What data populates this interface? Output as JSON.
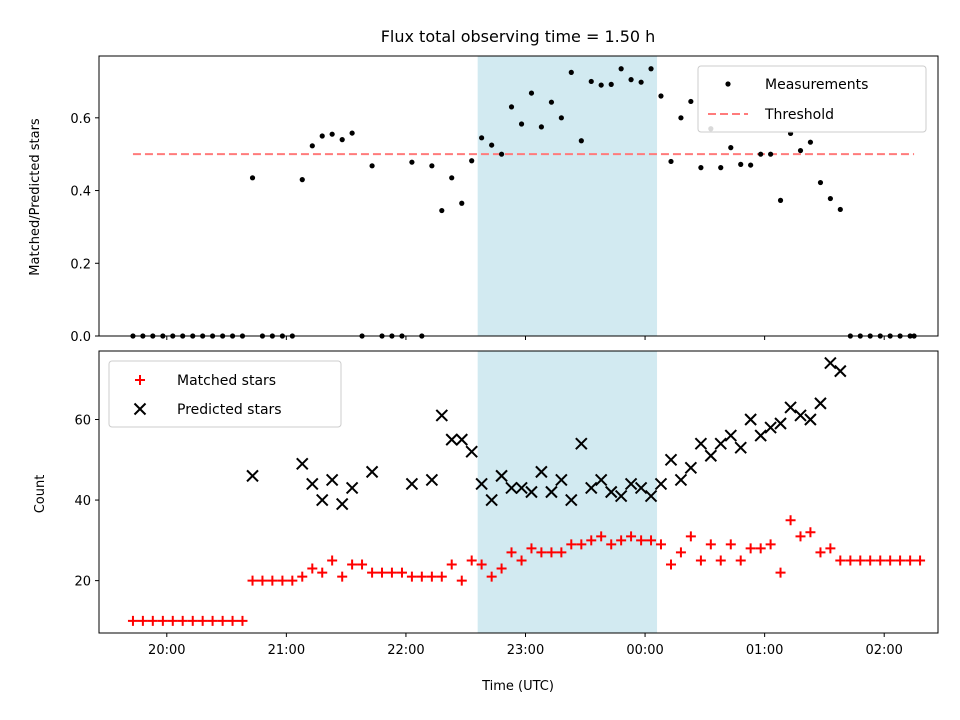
{
  "chart_data": [
    {
      "type": "scatter",
      "title": "Flux total observing time = 1.50 h",
      "xlabel": "",
      "ylabel": "Matched/Predicted stars",
      "xlim_hours": [
        19.433,
        26.45
      ],
      "ylim": [
        0,
        0.77
      ],
      "yticks": [
        "0.0",
        "0.2",
        "0.4",
        "0.6"
      ],
      "highlight_hours": [
        22.6,
        24.1
      ],
      "highlight_color": "#add8e6",
      "legend": {
        "position": "top-right",
        "entries": [
          "Measurements",
          "Threshold"
        ]
      },
      "threshold": {
        "name": "Threshold",
        "y": 0.5,
        "x_range_hours": [
          19.717,
          26.25
        ],
        "color": "#ff7b7b",
        "style": "dashed"
      },
      "series": [
        {
          "name": "Measurements",
          "marker": "dot",
          "color": "#000000",
          "points": [
            [
              19.717,
              0
            ],
            [
              19.8,
              0
            ],
            [
              19.883,
              0
            ],
            [
              19.967,
              0
            ],
            [
              20.05,
              0
            ],
            [
              20.133,
              0
            ],
            [
              20.217,
              0
            ],
            [
              20.3,
              0
            ],
            [
              20.383,
              0
            ],
            [
              20.467,
              0
            ],
            [
              20.55,
              0
            ],
            [
              20.633,
              0
            ],
            [
              20.717,
              0.435
            ],
            [
              20.8,
              0
            ],
            [
              20.883,
              0
            ],
            [
              20.967,
              0
            ],
            [
              21.05,
              0
            ],
            [
              21.133,
              0.43
            ],
            [
              21.217,
              0.523
            ],
            [
              21.3,
              0.55
            ],
            [
              21.383,
              0.555
            ],
            [
              21.467,
              0.54
            ],
            [
              21.55,
              0.558
            ],
            [
              21.633,
              0
            ],
            [
              21.717,
              0.468
            ],
            [
              21.8,
              0
            ],
            [
              21.883,
              0
            ],
            [
              21.967,
              0
            ],
            [
              22.05,
              0.478
            ],
            [
              22.133,
              0
            ],
            [
              22.217,
              0.468
            ],
            [
              22.3,
              0.345
            ],
            [
              22.383,
              0.435
            ],
            [
              22.467,
              0.365
            ],
            [
              22.55,
              0.482
            ],
            [
              22.633,
              0.545
            ],
            [
              22.717,
              0.525
            ],
            [
              22.8,
              0.5
            ],
            [
              22.883,
              0.63
            ],
            [
              22.967,
              0.583
            ],
            [
              23.05,
              0.668
            ],
            [
              23.133,
              0.575
            ],
            [
              23.217,
              0.643
            ],
            [
              23.3,
              0.6
            ],
            [
              23.383,
              0.725
            ],
            [
              23.467,
              0.537
            ],
            [
              23.55,
              0.7
            ],
            [
              23.633,
              0.69
            ],
            [
              23.717,
              0.692
            ],
            [
              23.8,
              0.735
            ],
            [
              23.883,
              0.705
            ],
            [
              23.967,
              0.698
            ],
            [
              24.05,
              0.735
            ],
            [
              24.133,
              0.66
            ],
            [
              24.217,
              0.48
            ],
            [
              24.3,
              0.6
            ],
            [
              24.383,
              0.645
            ],
            [
              24.467,
              0.463
            ],
            [
              24.55,
              0.57
            ],
            [
              24.633,
              0.463
            ],
            [
              24.717,
              0.518
            ],
            [
              24.8,
              0.472
            ],
            [
              24.883,
              0.47
            ],
            [
              24.967,
              0.5
            ],
            [
              25.05,
              0.5
            ],
            [
              25.133,
              0.373
            ],
            [
              25.217,
              0.557
            ],
            [
              25.3,
              0.51
            ],
            [
              25.383,
              0.533
            ],
            [
              25.467,
              0.422
            ],
            [
              25.55,
              0.378
            ],
            [
              25.633,
              0.348
            ],
            [
              25.717,
              0
            ],
            [
              25.8,
              0
            ],
            [
              25.883,
              0
            ],
            [
              25.967,
              0
            ],
            [
              26.05,
              0
            ],
            [
              26.133,
              0
            ],
            [
              26.217,
              0
            ],
            [
              26.25,
              0
            ]
          ]
        }
      ]
    },
    {
      "type": "scatter",
      "title": "",
      "xlabel": "Time (UTC)",
      "ylabel": "Count",
      "xlim_hours": [
        19.433,
        26.45
      ],
      "ylim": [
        7,
        77
      ],
      "yticks": [
        "20",
        "40",
        "60"
      ],
      "xticks": [
        "20:00",
        "21:00",
        "22:00",
        "23:00",
        "00:00",
        "01:00",
        "02:00"
      ],
      "highlight_hours": [
        22.6,
        24.1
      ],
      "highlight_color": "#add8e6",
      "legend": {
        "position": "top-left",
        "entries": [
          "Matched stars",
          "Predicted stars"
        ]
      },
      "series": [
        {
          "name": "Matched stars",
          "marker": "plus",
          "color": "#ff0000",
          "points": [
            [
              19.717,
              10
            ],
            [
              19.8,
              10
            ],
            [
              19.883,
              10
            ],
            [
              19.967,
              10
            ],
            [
              20.05,
              10
            ],
            [
              20.133,
              10
            ],
            [
              20.217,
              10
            ],
            [
              20.3,
              10
            ],
            [
              20.383,
              10
            ],
            [
              20.467,
              10
            ],
            [
              20.55,
              10
            ],
            [
              20.633,
              10
            ],
            [
              20.717,
              20
            ],
            [
              20.8,
              20
            ],
            [
              20.883,
              20
            ],
            [
              20.967,
              20
            ],
            [
              21.05,
              20
            ],
            [
              21.133,
              21
            ],
            [
              21.217,
              23
            ],
            [
              21.3,
              22
            ],
            [
              21.383,
              25
            ],
            [
              21.467,
              21
            ],
            [
              21.55,
              24
            ],
            [
              21.633,
              24
            ],
            [
              21.717,
              22
            ],
            [
              21.8,
              22
            ],
            [
              21.883,
              22
            ],
            [
              21.967,
              22
            ],
            [
              22.05,
              21
            ],
            [
              22.133,
              21
            ],
            [
              22.217,
              21
            ],
            [
              22.3,
              21
            ],
            [
              22.383,
              24
            ],
            [
              22.467,
              20
            ],
            [
              22.55,
              25
            ],
            [
              22.633,
              24
            ],
            [
              22.717,
              21
            ],
            [
              22.8,
              23
            ],
            [
              22.883,
              27
            ],
            [
              22.967,
              25
            ],
            [
              23.05,
              28
            ],
            [
              23.133,
              27
            ],
            [
              23.217,
              27
            ],
            [
              23.3,
              27
            ],
            [
              23.383,
              29
            ],
            [
              23.467,
              29
            ],
            [
              23.55,
              30
            ],
            [
              23.633,
              31
            ],
            [
              23.717,
              29
            ],
            [
              23.8,
              30
            ],
            [
              23.883,
              31
            ],
            [
              23.967,
              30
            ],
            [
              24.05,
              30
            ],
            [
              24.133,
              29
            ],
            [
              24.217,
              24
            ],
            [
              24.3,
              27
            ],
            [
              24.383,
              31
            ],
            [
              24.467,
              25
            ],
            [
              24.55,
              29
            ],
            [
              24.633,
              25
            ],
            [
              24.717,
              29
            ],
            [
              24.8,
              25
            ],
            [
              24.883,
              28
            ],
            [
              24.967,
              28
            ],
            [
              25.05,
              29
            ],
            [
              25.133,
              22
            ],
            [
              25.217,
              35
            ],
            [
              25.3,
              31
            ],
            [
              25.383,
              32
            ],
            [
              25.467,
              27
            ],
            [
              25.55,
              28
            ],
            [
              25.633,
              25
            ],
            [
              25.717,
              25
            ],
            [
              25.8,
              25
            ],
            [
              25.883,
              25
            ],
            [
              25.967,
              25
            ],
            [
              26.05,
              25
            ],
            [
              26.133,
              25
            ],
            [
              26.217,
              25
            ],
            [
              26.3,
              25
            ]
          ]
        },
        {
          "name": "Predicted stars",
          "marker": "x",
          "color": "#000000",
          "points": [
            [
              20.717,
              46
            ],
            [
              21.133,
              49
            ],
            [
              21.217,
              44
            ],
            [
              21.3,
              40
            ],
            [
              21.383,
              45
            ],
            [
              21.467,
              39
            ],
            [
              21.55,
              43
            ],
            [
              21.717,
              47
            ],
            [
              22.05,
              44
            ],
            [
              22.217,
              45
            ],
            [
              22.3,
              61
            ],
            [
              22.383,
              55
            ],
            [
              22.467,
              55
            ],
            [
              22.55,
              52
            ],
            [
              22.633,
              44
            ],
            [
              22.717,
              40
            ],
            [
              22.8,
              46
            ],
            [
              22.883,
              43
            ],
            [
              22.967,
              43
            ],
            [
              23.05,
              42
            ],
            [
              23.133,
              47
            ],
            [
              23.217,
              42
            ],
            [
              23.3,
              45
            ],
            [
              23.383,
              40
            ],
            [
              23.467,
              54
            ],
            [
              23.55,
              43
            ],
            [
              23.633,
              45
            ],
            [
              23.717,
              42
            ],
            [
              23.8,
              41
            ],
            [
              23.883,
              44
            ],
            [
              23.967,
              43
            ],
            [
              24.05,
              41
            ],
            [
              24.133,
              44
            ],
            [
              24.217,
              50
            ],
            [
              24.3,
              45
            ],
            [
              24.383,
              48
            ],
            [
              24.467,
              54
            ],
            [
              24.55,
              51
            ],
            [
              24.633,
              54
            ],
            [
              24.717,
              56
            ],
            [
              24.8,
              53
            ],
            [
              24.883,
              60
            ],
            [
              24.967,
              56
            ],
            [
              25.05,
              58
            ],
            [
              25.133,
              59
            ],
            [
              25.217,
              63
            ],
            [
              25.3,
              61
            ],
            [
              25.383,
              60
            ],
            [
              25.467,
              64
            ],
            [
              25.55,
              74
            ],
            [
              25.633,
              72
            ]
          ]
        }
      ]
    }
  ]
}
